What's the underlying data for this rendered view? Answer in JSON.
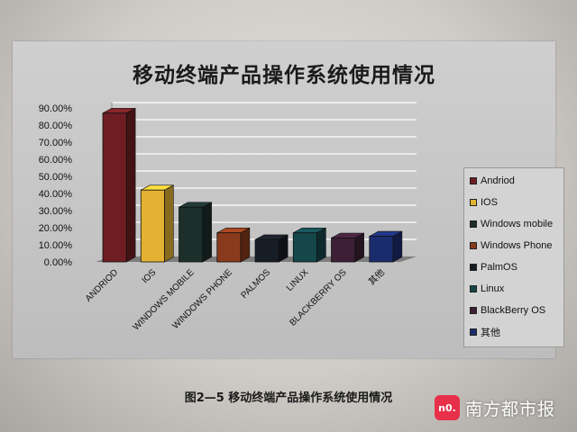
{
  "chart_data": {
    "type": "bar",
    "title": "移动终端产品操作系统使用情况",
    "xlabel": "",
    "ylabel": "",
    "categories": [
      "ANDRIOD",
      "IOS",
      "WINDOWS MOBILE",
      "WINDOWS PHONE",
      "PALMOS",
      "LINUX",
      "BLACKBERRY OS",
      "其他"
    ],
    "values": [
      87,
      42,
      32,
      17,
      13,
      17,
      14,
      15
    ],
    "ylim": [
      0,
      90
    ],
    "yticks": [
      "0.00%",
      "10.00%",
      "20.00%",
      "30.00%",
      "40.00%",
      "50.00%",
      "60.00%",
      "70.00%",
      "80.00%",
      "90.00%"
    ],
    "grid": true,
    "legend_position": "right",
    "legend": [
      "Andriod",
      "IOS",
      "Windows mobile",
      "Windows Phone",
      "PalmOS",
      "Linux",
      "BlackBerry OS",
      "其他"
    ],
    "colors": [
      "#6e1e22",
      "#e3b232",
      "#1c2f2b",
      "#8a3a1c",
      "#171d24",
      "#14464a",
      "#3d1f35",
      "#1b2c6e"
    ]
  },
  "caption": "图2—5  移动终端产品操作系统使用情况",
  "watermark": {
    "logo_text": "n0.",
    "text": "南方都市报"
  }
}
